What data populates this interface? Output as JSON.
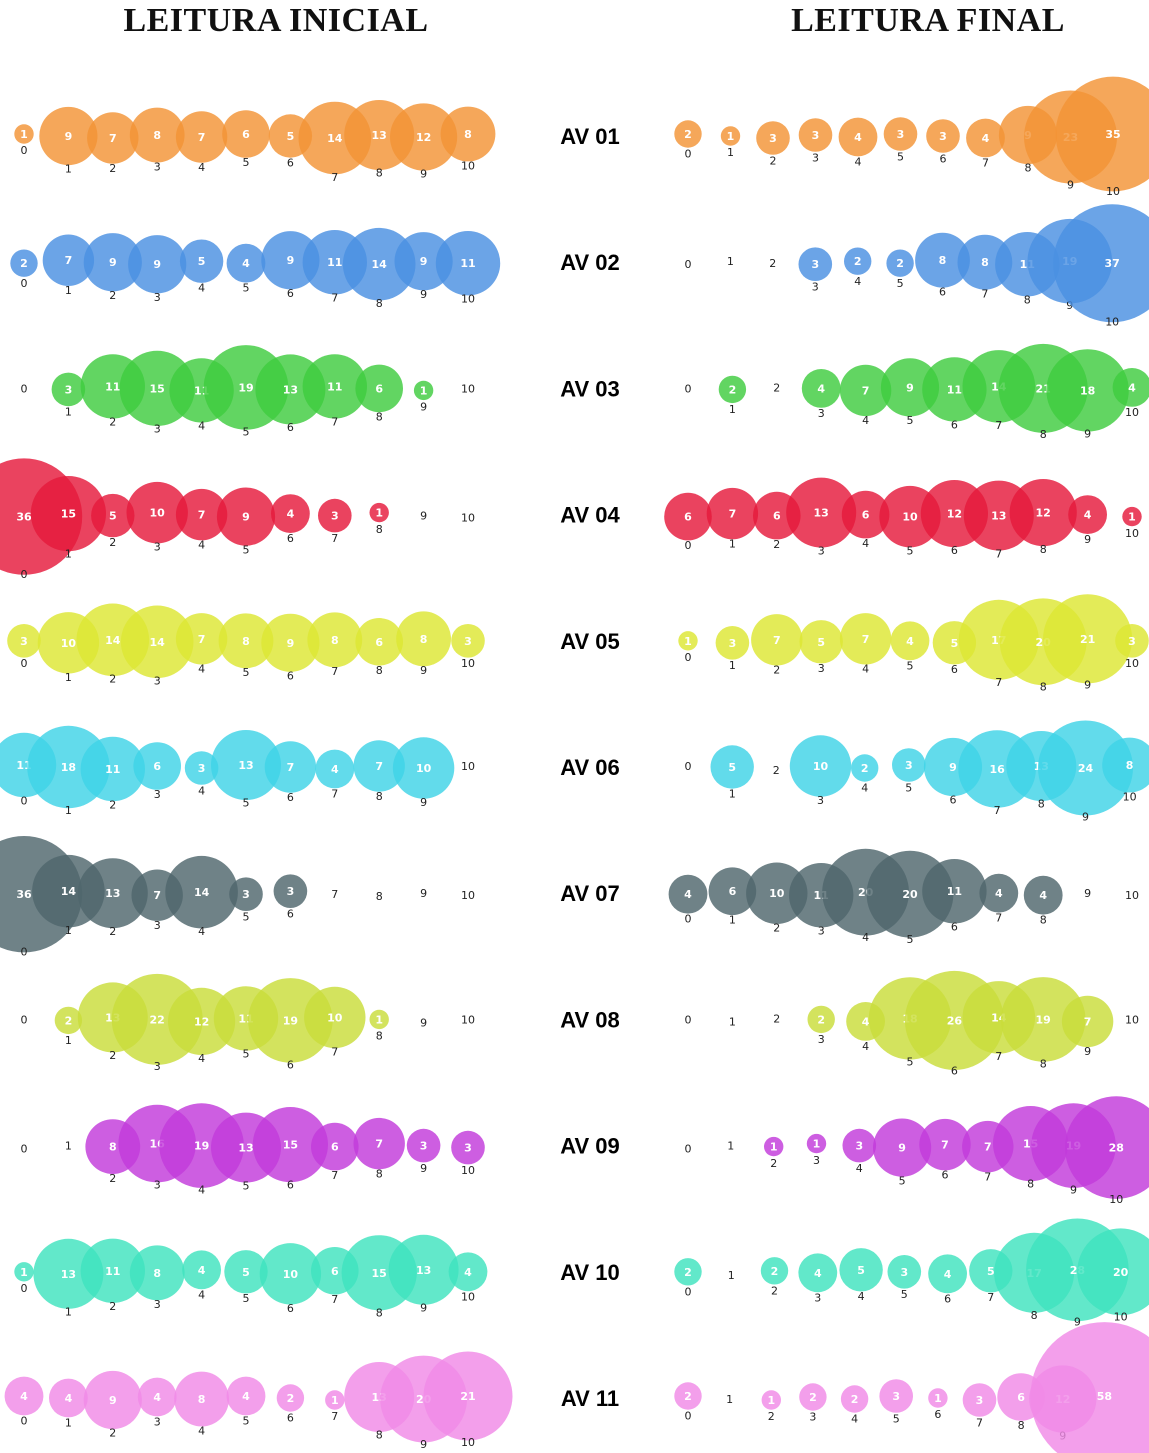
{
  "titles": {
    "left": "LEITURA INICIAL",
    "right": "LEITURA FINAL"
  },
  "chart_data": {
    "type": "bubble",
    "x_categories": [
      0,
      1,
      2,
      3,
      4,
      5,
      6,
      7,
      8,
      9,
      10
    ],
    "panels": [
      "LEITURA INICIAL",
      "LEITURA FINAL"
    ],
    "rows": [
      {
        "label": "AV 01",
        "color": "#F39436",
        "initial": [
          1,
          9,
          7,
          8,
          7,
          6,
          5,
          14,
          13,
          12,
          8
        ],
        "final": [
          2,
          1,
          3,
          3,
          4,
          3,
          3,
          4,
          9,
          23,
          35
        ]
      },
      {
        "label": "AV 02",
        "color": "#4A90E2",
        "initial": [
          2,
          7,
          9,
          9,
          5,
          4,
          9,
          11,
          14,
          9,
          11
        ],
        "final": [
          0,
          0,
          0,
          3,
          2,
          2,
          8,
          8,
          11,
          19,
          37
        ]
      },
      {
        "label": "AV 03",
        "color": "#3FCC3F",
        "initial": [
          0,
          3,
          11,
          15,
          11,
          19,
          13,
          11,
          6,
          1,
          0
        ],
        "final": [
          0,
          2,
          0,
          4,
          7,
          9,
          11,
          14,
          21,
          18,
          4
        ]
      },
      {
        "label": "AV 04",
        "color": "#E51A3C",
        "initial": [
          36,
          15,
          5,
          10,
          7,
          9,
          4,
          3,
          1,
          0,
          0
        ],
        "final": [
          6,
          7,
          6,
          13,
          6,
          10,
          12,
          13,
          12,
          4,
          1
        ]
      },
      {
        "label": "AV 05",
        "color": "#DDE633",
        "initial": [
          3,
          10,
          14,
          14,
          7,
          8,
          9,
          8,
          6,
          8,
          3
        ],
        "final": [
          1,
          3,
          7,
          5,
          7,
          4,
          5,
          17,
          20,
          21,
          3
        ]
      },
      {
        "label": "AV 06",
        "color": "#3FD3E6",
        "initial": [
          11,
          18,
          11,
          6,
          3,
          13,
          7,
          4,
          7,
          10,
          0
        ],
        "final": [
          0,
          5,
          0,
          10,
          2,
          3,
          9,
          16,
          13,
          24,
          8
        ]
      },
      {
        "label": "AV 07",
        "color": "#4F666C",
        "initial": [
          36,
          14,
          13,
          7,
          14,
          3,
          3,
          0,
          0,
          0,
          0
        ],
        "final": [
          4,
          6,
          10,
          11,
          20,
          20,
          11,
          4,
          4,
          0,
          0
        ]
      },
      {
        "label": "AV 08",
        "color": "#C9DD3A",
        "initial": [
          0,
          2,
          13,
          22,
          12,
          11,
          19,
          10,
          1,
          0,
          0
        ],
        "final": [
          0,
          0,
          0,
          2,
          4,
          18,
          26,
          14,
          19,
          7,
          0
        ]
      },
      {
        "label": "AV 09",
        "color": "#C23BDB",
        "initial": [
          0,
          0,
          8,
          16,
          19,
          13,
          15,
          6,
          7,
          3,
          3
        ],
        "final": [
          0,
          0,
          1,
          1,
          3,
          9,
          7,
          7,
          15,
          19,
          28
        ]
      },
      {
        "label": "AV 10",
        "color": "#3FE3BE",
        "initial": [
          1,
          13,
          11,
          8,
          4,
          5,
          10,
          6,
          15,
          13,
          4
        ],
        "final": [
          2,
          0,
          2,
          4,
          5,
          3,
          4,
          5,
          17,
          28,
          20
        ]
      },
      {
        "label": "AV 11",
        "color": "#F08AE6",
        "initial": [
          4,
          4,
          9,
          4,
          8,
          4,
          2,
          1,
          13,
          20,
          21
        ],
        "final": [
          2,
          0,
          1,
          2,
          2,
          3,
          1,
          3,
          6,
          12,
          58
        ]
      }
    ]
  }
}
